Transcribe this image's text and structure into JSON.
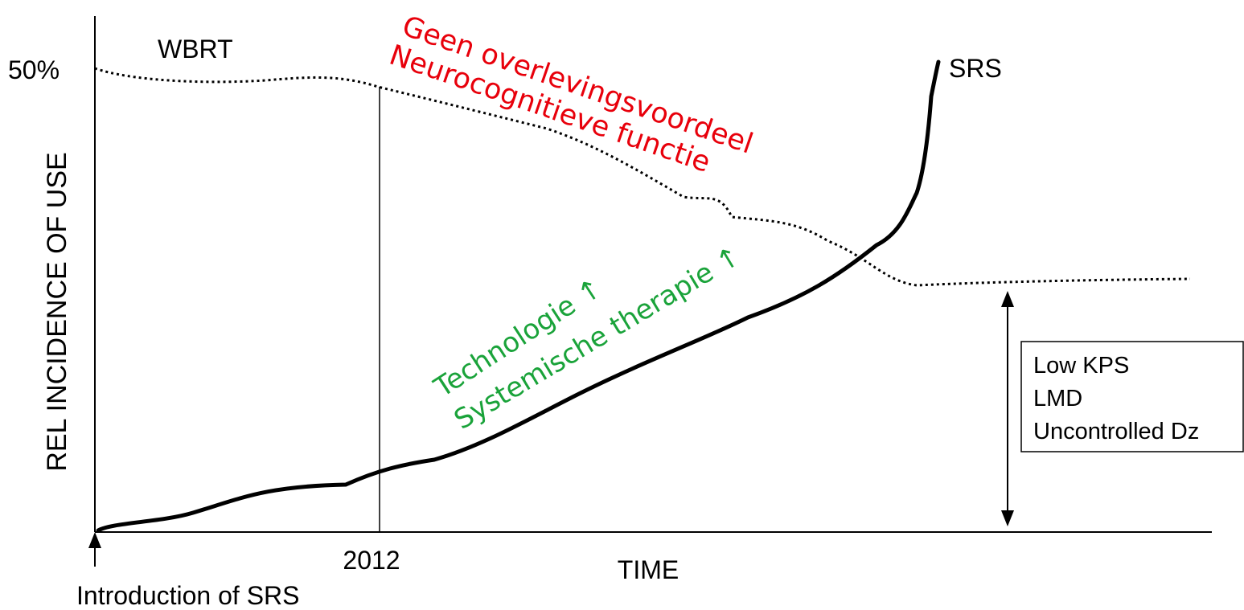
{
  "y_axis_label": "REL INCIDENCE OF USE",
  "x_axis_label": "TIME",
  "y_marker": "50%",
  "x_marker": "2012",
  "origin_label": "Introduction of SRS",
  "curves": {
    "wbrt": "WBRT",
    "srs": "SRS"
  },
  "red_annotation": [
    "Geen overlevingsvoordeel",
    "Neurocognitieve functie"
  ],
  "green_annotation": [
    "Technologie ↑",
    "Systemische therapie ↑"
  ],
  "box": [
    "Low KPS",
    "LMD",
    "Uncontrolled Dz"
  ]
}
